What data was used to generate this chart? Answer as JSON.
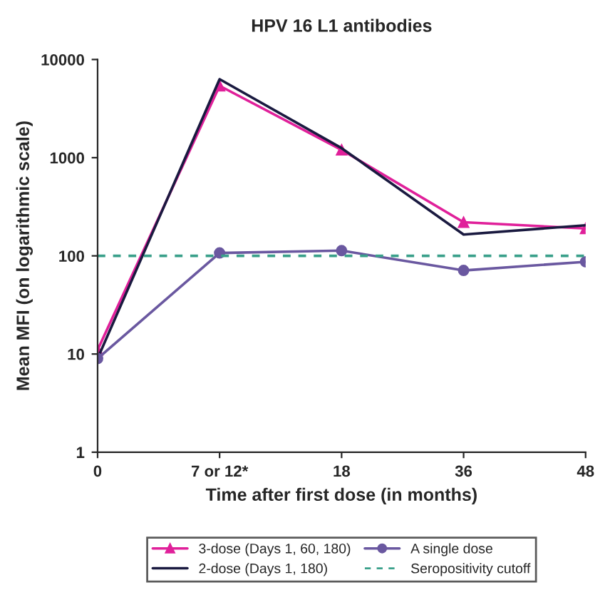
{
  "chart_data": {
    "type": "line",
    "title": "HPV 16 L1 antibodies",
    "xlabel": "Time after first dose (in months)",
    "ylabel": "Mean MFI (on logarithmic scale)",
    "categories": [
      "0",
      "7 or 12*",
      "18",
      "36",
      "48"
    ],
    "series": [
      {
        "name": "3-dose (Days 1, 60, 180)",
        "color": "#e0209a",
        "marker": "triangle",
        "values": [
          11,
          5400,
          1200,
          220,
          190
        ]
      },
      {
        "name": "2-dose (Days 1, 180)",
        "color": "#1a1a40",
        "marker": "none",
        "values": [
          9,
          6300,
          1250,
          165,
          205
        ]
      },
      {
        "name": "A single dose",
        "color": "#6a58a0",
        "marker": "circle",
        "values": [
          9,
          107,
          113,
          71,
          87
        ]
      }
    ],
    "ref_lines": [
      {
        "axis": "y",
        "value": 100,
        "label": "Seropositivity cutoff",
        "color": "#3aa08a",
        "line_style": "dashed"
      }
    ],
    "log": "y",
    "ylim": [
      1,
      10000
    ],
    "yticks": [
      1,
      10,
      100,
      1000,
      10000
    ],
    "grid": false,
    "legend": "bottom"
  }
}
